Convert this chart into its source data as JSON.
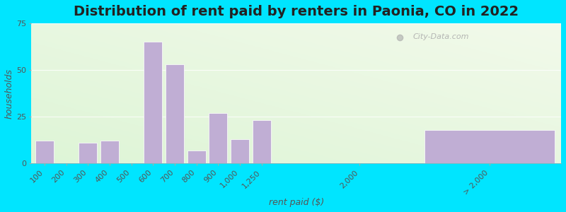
{
  "title": "Distribution of rent paid by renters in Paonia, CO in 2022",
  "xlabel": "rent paid ($)",
  "ylabel": "households",
  "categories": [
    "100",
    "200",
    "300",
    "400",
    "500",
    "600",
    "700",
    "800",
    "900",
    "1,000",
    "1,250",
    "2,000",
    "> 2,000"
  ],
  "values": [
    12,
    0,
    11,
    12,
    0,
    65,
    53,
    7,
    27,
    13,
    23,
    0,
    18
  ],
  "bar_color": "#c0aed4",
  "bar_edgecolor": "#ffffff",
  "ylim": [
    0,
    75
  ],
  "yticks": [
    0,
    25,
    50,
    75
  ],
  "bg_outer": "#00e5ff",
  "title_fontsize": 14,
  "axis_label_fontsize": 9,
  "tick_label_fontsize": 8,
  "watermark_text": "City-Data.com"
}
